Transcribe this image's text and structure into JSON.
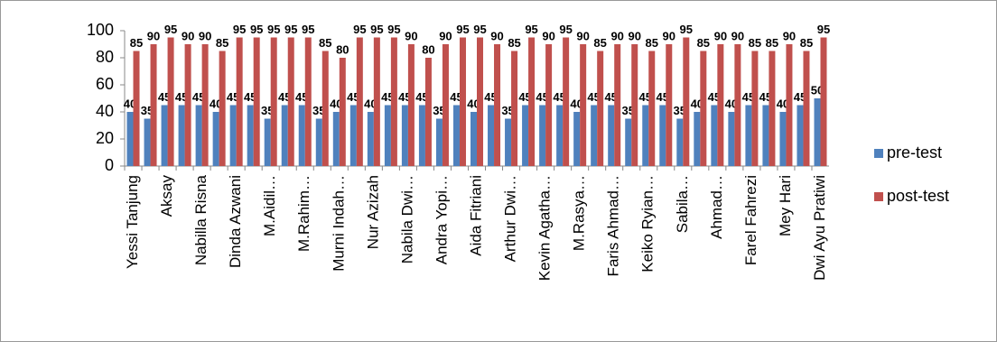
{
  "chart_data": {
    "type": "bar",
    "categories": [
      "Yessi Tanjung",
      null,
      "Aksay",
      null,
      "Nabilla Risna",
      null,
      "Dinda Azwani",
      null,
      "M.Aidil…",
      null,
      "M.Rahim…",
      null,
      "Murni Indah…",
      null,
      "Nur Azizah",
      null,
      "Nabila Dwi…",
      null,
      "Andra Yopi…",
      null,
      "Aida Fitriani",
      null,
      "Arthur Dwi…",
      null,
      "Kevin Agatha…",
      null,
      "M.Rasya…",
      null,
      "Faris Ahmad…",
      null,
      "Keiko Ryian…",
      null,
      "Sabila…",
      null,
      "Ahmad…",
      null,
      "Farel Fahrezi",
      null,
      "Mey Hari",
      null,
      "Dwi Ayu Pratiwi"
    ],
    "series": [
      {
        "name": "pre-test",
        "color": "#4f81bd",
        "values": [
          40,
          35,
          45,
          45,
          45,
          40,
          45,
          45,
          35,
          45,
          45,
          35,
          40,
          45,
          40,
          45,
          45,
          45,
          35,
          45,
          40,
          45,
          35,
          45,
          45,
          45,
          40,
          45,
          45,
          35,
          45,
          45,
          35,
          40,
          45,
          40,
          45,
          45,
          40,
          45,
          50
        ]
      },
      {
        "name": "post-test",
        "color": "#c0504d",
        "values": [
          85,
          90,
          95,
          90,
          90,
          85,
          95,
          95,
          95,
          95,
          95,
          85,
          80,
          95,
          95,
          95,
          90,
          80,
          90,
          95,
          95,
          90,
          85,
          95,
          90,
          95,
          90,
          85,
          90,
          90,
          85,
          90,
          95,
          85,
          90,
          90,
          85,
          85,
          90,
          85,
          95
        ]
      }
    ],
    "ylim": [
      0,
      100
    ],
    "yticks": [
      0,
      20,
      40,
      60,
      80,
      100
    ],
    "grid": false,
    "legend": "right"
  }
}
